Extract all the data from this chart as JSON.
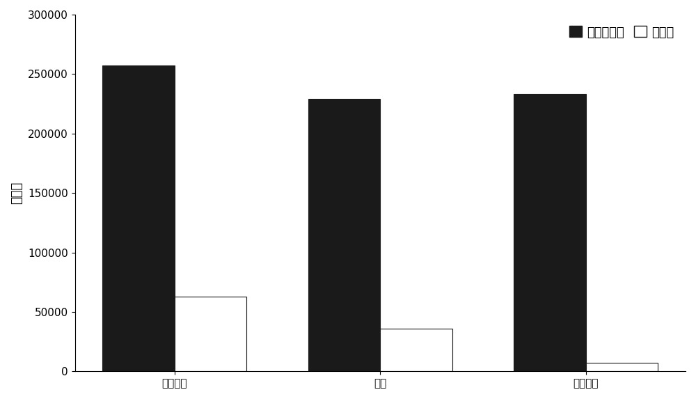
{
  "categories": [
    "二氯甲烷",
    "氯仿",
    "四氯化碳"
  ],
  "series1_name": "二甲苯鸝香",
  "series2_name": "芝麻酥",
  "series1_values": [
    257000,
    229000,
    233000
  ],
  "series2_values": [
    63000,
    36000,
    7000
  ],
  "series1_color": "#1a1a1a",
  "series2_color": "#ffffff",
  "series2_edgecolor": "#1a1a1a",
  "ylabel": "峰面积",
  "ylim": [
    0,
    300000
  ],
  "yticks": [
    0,
    50000,
    100000,
    150000,
    200000,
    250000,
    300000
  ],
  "bar_width": 0.35,
  "axis_fontsize": 13,
  "legend_fontsize": 13,
  "tick_fontsize": 11,
  "background_color": "#ffffff",
  "figure_width": 10.0,
  "figure_height": 5.73
}
